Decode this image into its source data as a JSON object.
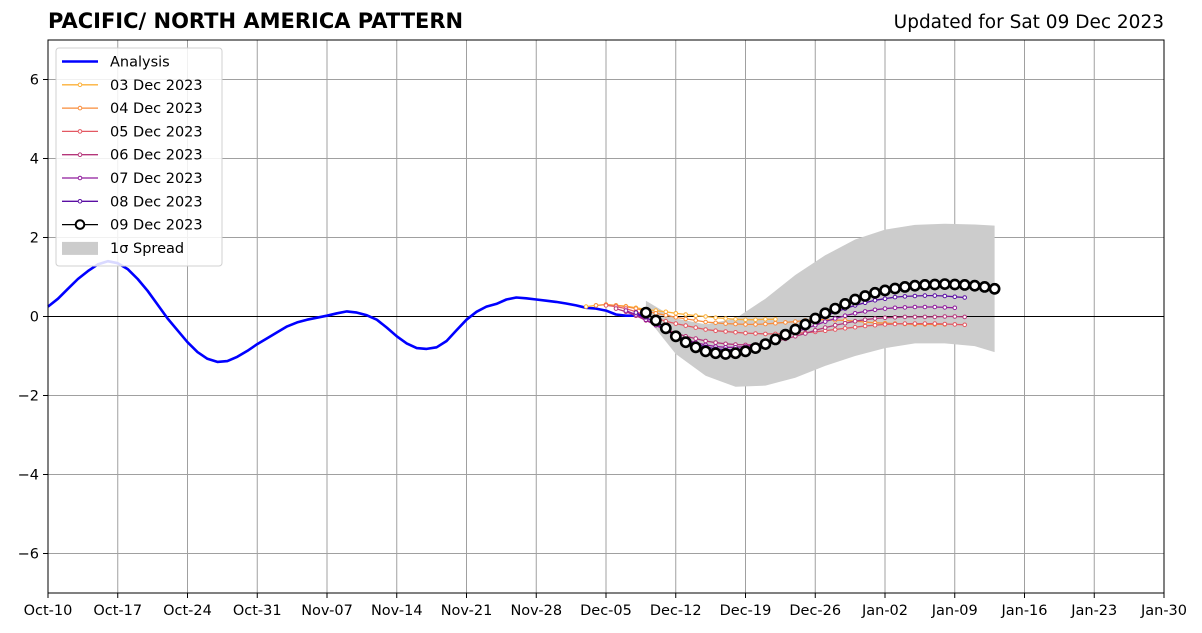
{
  "header": {
    "title": "PACIFIC/ NORTH AMERICA PATTERN",
    "updated": "Updated for Sat 09 Dec 2023"
  },
  "chart_data": {
    "type": "line",
    "title": "PACIFIC/ NORTH AMERICA PATTERN",
    "subtitle": "Updated for Sat 09 Dec 2023",
    "xlabel": "",
    "ylabel": "",
    "ylim": [
      -7,
      7
    ],
    "xlim": [
      "2023-10-10",
      "2024-01-30"
    ],
    "grid": true,
    "legend_position": "top-left",
    "x_ticks": [
      "Oct-10",
      "Oct-17",
      "Oct-24",
      "Oct-31",
      "Nov-07",
      "Nov-14",
      "Nov-21",
      "Nov-28",
      "Dec-05",
      "Dec-12",
      "Dec-19",
      "Dec-26",
      "Jan-02",
      "Jan-09",
      "Jan-16",
      "Jan-23",
      "Jan-30"
    ],
    "y_ticks": [
      "6",
      "4",
      "2",
      "0",
      "−2",
      "−4",
      "−6"
    ],
    "y_tick_values": [
      6,
      4,
      2,
      0,
      -2,
      -4,
      -6
    ],
    "analysis": {
      "name": "Analysis",
      "color": "#0000ff",
      "x": [
        "2023-10-10",
        "2023-10-11",
        "2023-10-12",
        "2023-10-13",
        "2023-10-14",
        "2023-10-15",
        "2023-10-16",
        "2023-10-17",
        "2023-10-18",
        "2023-10-19",
        "2023-10-20",
        "2023-10-21",
        "2023-10-22",
        "2023-10-23",
        "2023-10-24",
        "2023-10-25",
        "2023-10-26",
        "2023-10-27",
        "2023-10-28",
        "2023-10-29",
        "2023-10-30",
        "2023-10-31",
        "2023-11-01",
        "2023-11-02",
        "2023-11-03",
        "2023-11-04",
        "2023-11-05",
        "2023-11-06",
        "2023-11-07",
        "2023-11-08",
        "2023-11-09",
        "2023-11-10",
        "2023-11-11",
        "2023-11-12",
        "2023-11-13",
        "2023-11-14",
        "2023-11-15",
        "2023-11-16",
        "2023-11-17",
        "2023-11-18",
        "2023-11-19",
        "2023-11-20",
        "2023-11-21",
        "2023-11-22",
        "2023-11-23",
        "2023-11-24",
        "2023-11-25",
        "2023-11-26",
        "2023-11-27",
        "2023-11-28",
        "2023-11-29",
        "2023-11-30",
        "2023-12-01",
        "2023-12-02",
        "2023-12-03",
        "2023-12-04",
        "2023-12-05",
        "2023-12-06",
        "2023-12-07",
        "2023-12-08",
        "2023-12-09"
      ],
      "y": [
        0.25,
        0.45,
        0.7,
        0.95,
        1.15,
        1.32,
        1.4,
        1.35,
        1.2,
        0.95,
        0.65,
        0.3,
        -0.05,
        -0.35,
        -0.65,
        -0.9,
        -1.07,
        -1.15,
        -1.13,
        -1.02,
        -0.87,
        -0.7,
        -0.55,
        -0.4,
        -0.25,
        -0.15,
        -0.08,
        -0.03,
        0.02,
        0.08,
        0.13,
        0.1,
        0.03,
        -0.08,
        -0.28,
        -0.5,
        -0.68,
        -0.8,
        -0.82,
        -0.78,
        -0.62,
        -0.35,
        -0.08,
        0.12,
        0.25,
        0.32,
        0.43,
        0.48,
        0.46,
        0.43,
        0.4,
        0.37,
        0.33,
        0.28,
        0.22,
        0.2,
        0.15,
        0.05,
        0.02,
        0.02,
        0.03
      ]
    },
    "series": [
      {
        "name": "03 Dec 2023",
        "color": "#fcb038",
        "start": "2023-12-03",
        "values": [
          0.25,
          0.28,
          0.3,
          0.28,
          0.26,
          0.22,
          0.18,
          0.15,
          0.12,
          0.08,
          0.05,
          0.02,
          0,
          -0.03,
          -0.05,
          -0.07,
          -0.08,
          -0.08,
          -0.07,
          -0.07
        ]
      },
      {
        "name": "04 Dec 2023",
        "color": "#f98c3a",
        "start": "2023-12-04",
        "values": [
          0.28,
          0.3,
          0.28,
          0.25,
          0.2,
          0.14,
          0.08,
          0.03,
          -0.02,
          -0.06,
          -0.1,
          -0.14,
          -0.16,
          -0.18,
          -0.19,
          -0.2,
          -0.2,
          -0.19,
          -0.17,
          -0.15,
          -0.13,
          -0.1,
          -0.08,
          -0.08,
          -0.09,
          -0.1,
          -0.12,
          -0.14,
          -0.16,
          -0.17,
          -0.18,
          -0.19,
          -0.2,
          -0.2,
          -0.2,
          -0.2
        ]
      },
      {
        "name": "05 Dec 2023",
        "color": "#e35862",
        "start": "2023-12-05",
        "values": [
          0.28,
          0.25,
          0.2,
          0.12,
          0.04,
          -0.04,
          -0.12,
          -0.18,
          -0.23,
          -0.28,
          -0.33,
          -0.36,
          -0.38,
          -0.4,
          -0.42,
          -0.43,
          -0.44,
          -0.44,
          -0.44,
          -0.43,
          -0.41,
          -0.39,
          -0.36,
          -0.33,
          -0.3,
          -0.27,
          -0.24,
          -0.22,
          -0.2,
          -0.19,
          -0.18,
          -0.18,
          -0.18,
          -0.18,
          -0.19,
          -0.2,
          -0.21
        ]
      },
      {
        "name": "06 Dec 2023",
        "color": "#b5367a",
        "start": "2023-12-06",
        "values": [
          0.2,
          0.12,
          0.02,
          -0.1,
          -0.22,
          -0.32,
          -0.42,
          -0.5,
          -0.56,
          -0.62,
          -0.66,
          -0.69,
          -0.71,
          -0.72,
          -0.71,
          -0.68,
          -0.63,
          -0.57,
          -0.5,
          -0.43,
          -0.35,
          -0.28,
          -0.22,
          -0.17,
          -0.12,
          -0.08,
          -0.05,
          -0.03,
          -0.02,
          -0.01,
          -0.01,
          -0.01,
          -0.01,
          0,
          0,
          -0.01
        ]
      },
      {
        "name": "07 Dec 2023",
        "color": "#8f1b9c",
        "start": "2023-12-07",
        "values": [
          0.15,
          0.05,
          -0.08,
          -0.22,
          -0.36,
          -0.48,
          -0.58,
          -0.66,
          -0.72,
          -0.76,
          -0.78,
          -0.78,
          -0.76,
          -0.72,
          -0.66,
          -0.58,
          -0.49,
          -0.4,
          -0.31,
          -0.22,
          -0.13,
          -0.05,
          0.02,
          0.08,
          0.13,
          0.17,
          0.2,
          0.22,
          0.23,
          0.24,
          0.24,
          0.24,
          0.23,
          0.22
        ]
      },
      {
        "name": "08 Dec 2023",
        "color": "#5a0ea3",
        "start": "2023-12-08",
        "values": [
          0.1,
          -0.02,
          -0.17,
          -0.33,
          -0.48,
          -0.6,
          -0.7,
          -0.77,
          -0.82,
          -0.84,
          -0.84,
          -0.81,
          -0.75,
          -0.67,
          -0.57,
          -0.46,
          -0.34,
          -0.22,
          -0.1,
          0.01,
          0.11,
          0.2,
          0.28,
          0.35,
          0.41,
          0.45,
          0.49,
          0.51,
          0.52,
          0.53,
          0.53,
          0.52,
          0.5,
          0.48
        ]
      },
      {
        "name": "09 Dec 2023",
        "color": "#000000",
        "start": "2023-12-09",
        "values": [
          0.1,
          -0.1,
          -0.3,
          -0.5,
          -0.65,
          -0.78,
          -0.88,
          -0.93,
          -0.95,
          -0.93,
          -0.88,
          -0.8,
          -0.7,
          -0.58,
          -0.46,
          -0.33,
          -0.2,
          -0.05,
          0.08,
          0.2,
          0.32,
          0.43,
          0.52,
          0.6,
          0.66,
          0.71,
          0.75,
          0.78,
          0.8,
          0.81,
          0.82,
          0.81,
          0.8,
          0.78,
          0.75,
          0.7
        ]
      }
    ],
    "spread": {
      "name": "1σ Spread",
      "color": "#cccccc",
      "x": [
        "2023-12-09",
        "2023-12-12",
        "2023-12-15",
        "2023-12-18",
        "2023-12-21",
        "2023-12-24",
        "2023-12-27",
        "2023-12-30",
        "2024-01-02",
        "2024-01-05",
        "2024-01-08",
        "2024-01-11",
        "2024-01-13"
      ],
      "upper": [
        0.4,
        -0.05,
        -0.2,
        -0.05,
        0.45,
        1.05,
        1.55,
        1.95,
        2.2,
        2.32,
        2.35,
        2.33,
        2.3
      ],
      "lower": [
        0.0,
        -0.95,
        -1.5,
        -1.78,
        -1.75,
        -1.55,
        -1.25,
        -1.0,
        -0.8,
        -0.68,
        -0.68,
        -0.75,
        -0.9
      ]
    }
  },
  "legend": {
    "items": [
      {
        "label": "Analysis",
        "color": "#0000ff",
        "kind": "analysis"
      },
      {
        "label": "03 Dec 2023",
        "color": "#fcb038",
        "kind": "small"
      },
      {
        "label": "04 Dec 2023",
        "color": "#f98c3a",
        "kind": "small"
      },
      {
        "label": "05 Dec 2023",
        "color": "#e35862",
        "kind": "small"
      },
      {
        "label": "06 Dec 2023",
        "color": "#b5367a",
        "kind": "small"
      },
      {
        "label": "07 Dec 2023",
        "color": "#8f1b9c",
        "kind": "small"
      },
      {
        "label": "08 Dec 2023",
        "color": "#5a0ea3",
        "kind": "small"
      },
      {
        "label": "09 Dec 2023",
        "color": "#000000",
        "kind": "big"
      },
      {
        "label": "1σ Spread",
        "color": "#cccccc",
        "kind": "patch"
      }
    ]
  }
}
